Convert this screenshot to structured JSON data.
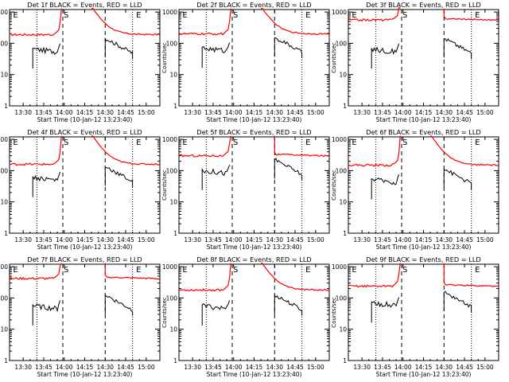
{
  "shared": {
    "xlabel": "Start Time (10-Jan-12 13:23:40)",
    "ylabel": "Counts/sec",
    "x_ticks": [
      "13:30",
      "13:45",
      "14:00",
      "14:15",
      "14:30",
      "14:45",
      "15:00"
    ],
    "y_ticks": [
      "1",
      "10",
      "100",
      "1000"
    ],
    "colors": {
      "events": "#000000",
      "lld": "#ff0000"
    },
    "x_range_min": [
      -10,
      100
    ],
    "y_range": [
      1,
      1200
    ],
    "y_scale": "log",
    "markers": {
      "S": "S",
      "E": "E"
    }
  },
  "chart_data": [
    {
      "type": "line",
      "title": "Det 1f BLACK = Events, RED = LLD",
      "lld_level": 190,
      "events_level": 70,
      "wall": false
    },
    {
      "type": "line",
      "title": "Det 2f BLACK = Events, RED = LLD",
      "lld_level": 200,
      "events_level": 75,
      "wall": false
    },
    {
      "type": "line",
      "title": "Det 3f BLACK = Events, RED = LLD",
      "lld_level": 560,
      "events_level": 70,
      "wall": true
    },
    {
      "type": "line",
      "title": "Det 4f BLACK = Events, RED = LLD",
      "lld_level": 160,
      "events_level": 65,
      "wall": false
    },
    {
      "type": "line",
      "title": "Det 5f BLACK = Events, RED = LLD",
      "lld_level": 300,
      "events_level": 110,
      "wall": true
    },
    {
      "type": "line",
      "title": "Det 6f BLACK = Events, RED = LLD",
      "lld_level": 150,
      "events_level": 55,
      "wall": false
    },
    {
      "type": "line",
      "title": "Det 7f BLACK = Events, RED = LLD",
      "lld_level": 420,
      "events_level": 60,
      "wall": true
    },
    {
      "type": "line",
      "title": "Det 8f BLACK = Events, RED = LLD",
      "lld_level": 180,
      "events_level": 60,
      "wall": false
    },
    {
      "type": "line",
      "title": "Det 9f BLACK = Events, RED = LLD",
      "lld_level": 240,
      "events_level": 75,
      "wall": true
    }
  ]
}
